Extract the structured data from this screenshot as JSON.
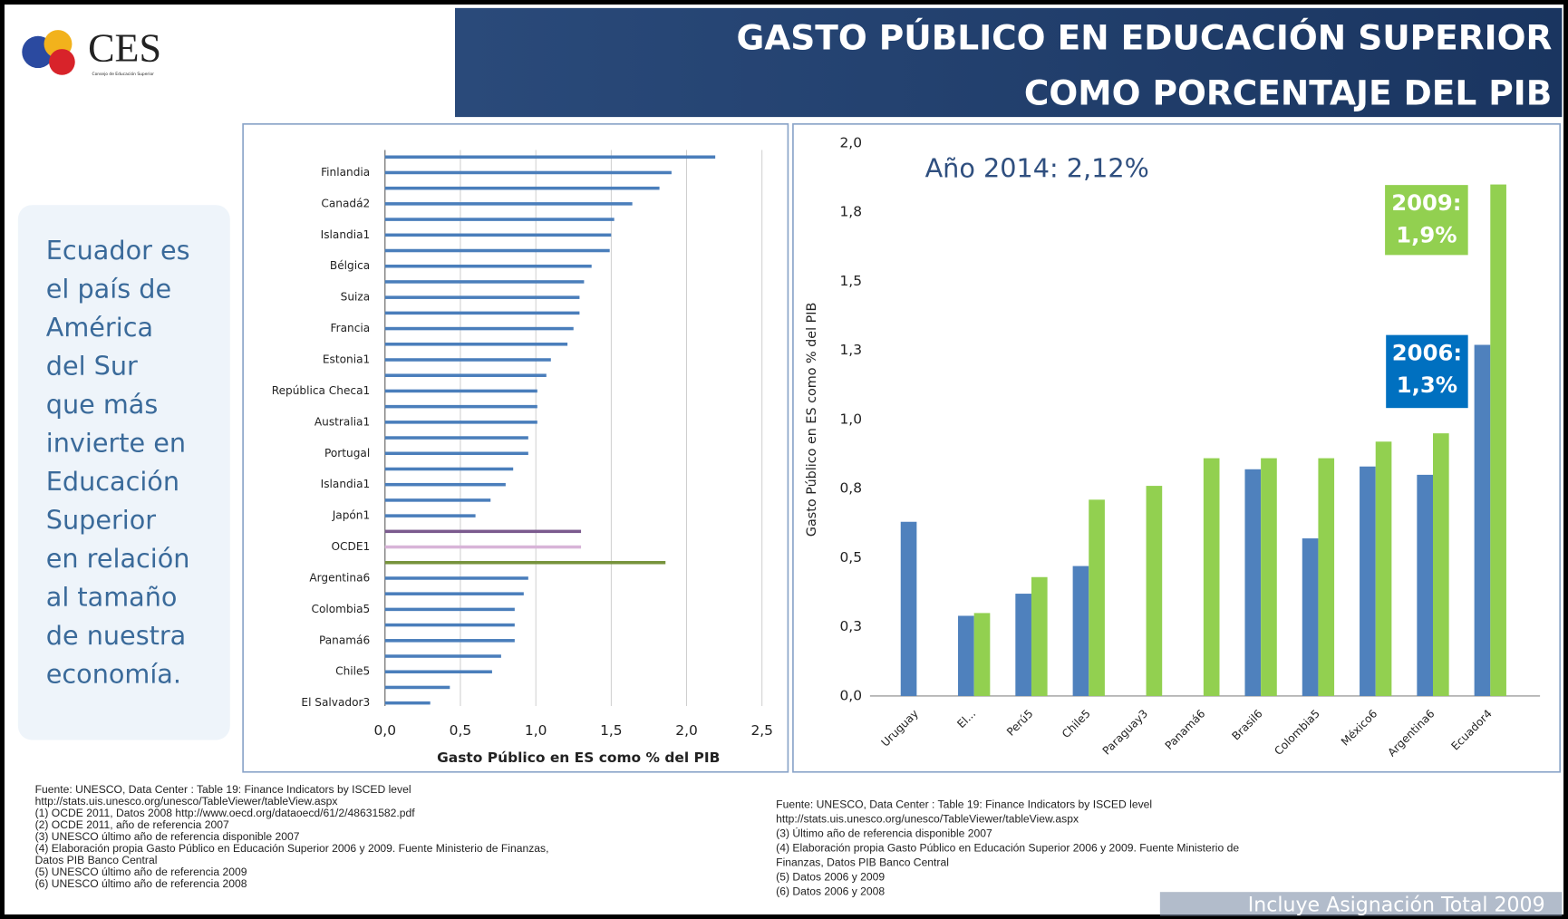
{
  "logo": {
    "text": "CES",
    "subtitle": "Consejo de Educación Superior"
  },
  "header": {
    "title_lines": [
      "GASTO PÚBLICO EN EDUCACIÓN SUPERIOR",
      "COMO PORCENTAJE DEL PIB"
    ]
  },
  "sidebar": {
    "lines": [
      "Ecuador es",
      "el país de",
      "América",
      "del Sur",
      "que más",
      "invierte en",
      "Educación",
      "Superior",
      "en relación",
      "al tamaño",
      "de nuestra",
      "economía."
    ]
  },
  "sources_left": [
    "Fuente: UNESCO, Data Center : Table 19: Finance Indicators by ISCED level",
    "http://stats.uis.unesco.org/unesco/TableViewer/tableView.aspx",
    "(1) OCDE 2011, Datos 2008 http://www.oecd.org/dataoecd/61/2/48631582.pdf",
    "(2) OCDE 2011,  año de referencia 2007",
    "(3) UNESCO último año de referencia disponible 2007",
    "(4) Elaboración propia Gasto Público en Educación Superior 2006 y 2009. Fuente Ministerio de Finanzas,",
    "Datos PIB Banco Central",
    "(5) UNESCO último año de referencia  2009",
    "(6) UNESCO último año de referencia 2008"
  ],
  "sources_right": [
    "Fuente: UNESCO, Data Center : Table 19: Finance Indicators by ISCED level",
    "http://stats.uis.unesco.org/unesco/TableViewer/tableView.aspx",
    "(3) Último año de referencia disponible 2007",
    "(4) Elaboración propia Gasto Público en Educación Superior 2006 y 2009. Fuente Ministerio de",
    "Finanzas, Datos PIB Banco Central",
    "(5) Datos 2006 y 2009",
    "(6) Datos 2006 y 2008"
  ],
  "footer_note": "Incluye Asignación Total 2009",
  "chart_data": [
    {
      "type": "hbar",
      "x_label": "Gasto Público en ES como % del PIB",
      "categories": [
        null,
        "Finlandia",
        null,
        "Canadá2",
        null,
        "Islandia1",
        null,
        "Bélgica",
        null,
        "Suiza",
        null,
        "Francia",
        null,
        "Estonia1",
        null,
        "República Checa1",
        null,
        "Australia1",
        null,
        "Portugal",
        null,
        "Islandia1",
        null,
        "Japón1",
        null,
        "OCDE1",
        null,
        "Argentina6",
        null,
        "Colombia5",
        null,
        "Panamá6",
        null,
        "Chile5",
        null,
        "El Salvador3"
      ],
      "values": [
        2.19,
        1.9,
        1.82,
        1.64,
        1.52,
        1.5,
        1.49,
        1.37,
        1.32,
        1.29,
        1.29,
        1.25,
        1.21,
        1.1,
        1.07,
        1.01,
        1.01,
        1.01,
        0.95,
        0.95,
        0.85,
        0.8,
        0.7,
        0.6,
        1.3,
        1.3,
        1.86,
        0.95,
        0.92,
        0.86,
        0.86,
        0.86,
        0.77,
        0.71,
        0.43,
        0.3
      ],
      "colors": [
        "#4a7ebb",
        "#4a7ebb",
        "#4a7ebb",
        "#4a7ebb",
        "#4a7ebb",
        "#4a7ebb",
        "#4a7ebb",
        "#4a7ebb",
        "#4a7ebb",
        "#4a7ebb",
        "#4a7ebb",
        "#4a7ebb",
        "#4a7ebb",
        "#4a7ebb",
        "#4a7ebb",
        "#4a7ebb",
        "#4a7ebb",
        "#4a7ebb",
        "#4a7ebb",
        "#4a7ebb",
        "#4a7ebb",
        "#4a7ebb",
        "#4a7ebb",
        "#4a7ebb",
        "#7b5a8e",
        "#d8b4d8",
        "#77933c",
        "#4a7ebb",
        "#4a7ebb",
        "#4a7ebb",
        "#4a7ebb",
        "#4a7ebb",
        "#4a7ebb",
        "#4a7ebb",
        "#4a7ebb",
        "#4a7ebb"
      ],
      "xlim": [
        0,
        2.5
      ],
      "xticks": [
        {
          "value": 0,
          "label": "0,0"
        },
        {
          "value": 0.5,
          "label": "0,5"
        },
        {
          "value": 1,
          "label": "1,0"
        },
        {
          "value": 1.5,
          "label": "1,5"
        },
        {
          "value": 2,
          "label": "2,0"
        },
        {
          "value": 2.5,
          "label": "2,5"
        }
      ],
      "grid": true
    },
    {
      "type": "grouped_bar",
      "y_label": "Gasto Público en ES como % del PIB",
      "categories": [
        "Uruguay",
        "El...",
        "Perú5",
        "Chile5",
        "Paraguay3",
        "Panamá6",
        "Brasil6",
        "Colombia5",
        "México6",
        "Argentina6",
        "Ecuador4"
      ],
      "series": [
        {
          "name": "2006",
          "color": "#4f81bd",
          "values": [
            0.63,
            0.29,
            0.37,
            0.47,
            null,
            null,
            0.82,
            0.57,
            0.83,
            0.8,
            1.27
          ]
        },
        {
          "name": "2009",
          "color": "#92d050",
          "values": [
            null,
            0.3,
            0.43,
            0.71,
            0.76,
            0.86,
            0.86,
            0.86,
            0.92,
            0.95,
            1.85
          ]
        }
      ],
      "ylim": [
        0,
        2
      ],
      "yticks": [
        {
          "value": 0,
          "label": "0,0"
        },
        {
          "value": 0.25,
          "label": "0,3"
        },
        {
          "value": 0.5,
          "label": "0,5"
        },
        {
          "value": 0.75,
          "label": "0,8"
        },
        {
          "value": 1,
          "label": "1,0"
        },
        {
          "value": 1.25,
          "label": "1,3"
        },
        {
          "value": 1.5,
          "label": "1,5"
        },
        {
          "value": 1.75,
          "label": "1,8"
        },
        {
          "value": 2,
          "label": "2,0"
        }
      ],
      "grid": false,
      "annotations": [
        {
          "lines": [
            "Año 2014: 2,12%"
          ]
        },
        {
          "lines": [
            "2009:",
            "1,9%"
          ],
          "color": "#92d050"
        },
        {
          "lines": [
            "2006:",
            "1,3%"
          ],
          "color": "#0070c0"
        }
      ]
    }
  ]
}
